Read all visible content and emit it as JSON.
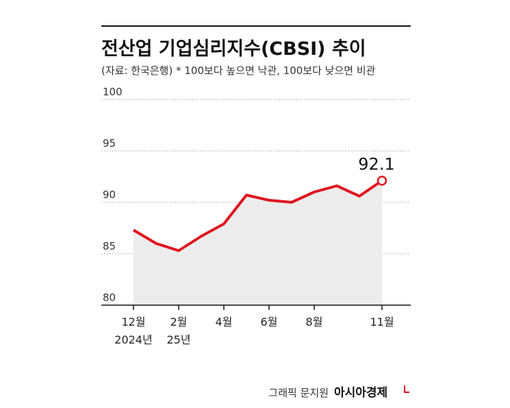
{
  "chart_data": {
    "type": "line",
    "title": "전산업 기업심리지수(CBSI) 추이",
    "subtitle": "(자료: 한국은행)  * 100보다 높으면 낙관, 100보다 낮으면 비관",
    "categories": [
      "12월",
      null,
      "2월",
      null,
      "4월",
      null,
      "6월",
      null,
      "8월",
      null,
      null,
      "11월"
    ],
    "x_sublabels": [
      "2024년",
      null,
      "25년",
      null,
      null,
      null,
      null,
      null,
      null,
      null,
      null,
      null
    ],
    "series": [
      {
        "name": "CBSI",
        "color": "#e0141e",
        "values": [
          87.3,
          86.0,
          85.3,
          86.7,
          87.9,
          90.7,
          90.2,
          90.0,
          91.0,
          91.6,
          90.6,
          92.1
        ]
      }
    ],
    "ylim": [
      80,
      100
    ],
    "yticks": [
      80,
      85,
      90,
      95,
      100
    ],
    "grid": true,
    "credit": "그래픽 문지원",
    "brand": "아시아경제"
  }
}
